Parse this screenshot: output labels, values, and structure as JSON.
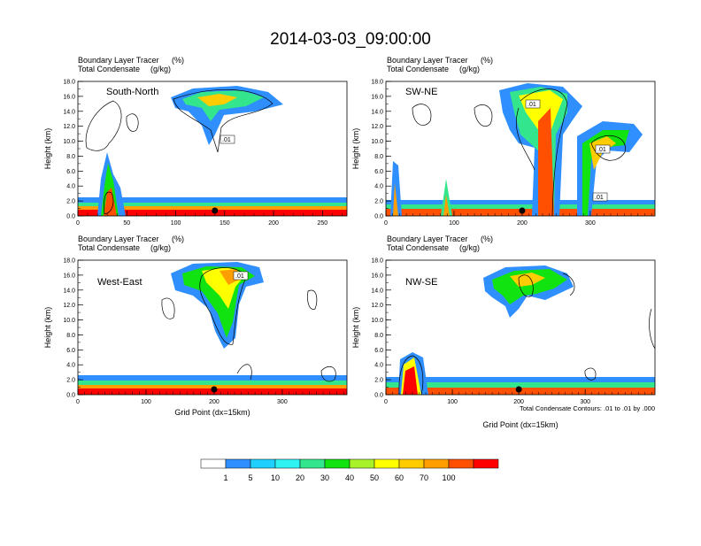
{
  "title": "2014-03-03_09:00:00",
  "colors": {
    "levels": [
      "#ffffff",
      "#2f8fff",
      "#1fd0ff",
      "#2ff2f2",
      "#33e58c",
      "#11e311",
      "#a8f22a",
      "#ffff00",
      "#ffcc00",
      "#ff9e00",
      "#ff4f00",
      "#ff0000"
    ],
    "contour": "#000000"
  },
  "chart_data": [
    {
      "type": "heatmap",
      "panel_label": "South-North",
      "left_title": "Boundary Layer Tracer",
      "left_units": "(%)",
      "left_title2": "Total Condensate",
      "left_units2": "(g/kg)",
      "ylabel": "Height (km)",
      "xlabel": "",
      "xlim": [
        0,
        275
      ],
      "ylim": [
        0,
        18
      ],
      "xticks": [
        0,
        50,
        100,
        150,
        200,
        250
      ],
      "yticks": [
        "0.0",
        "2.0",
        "4.0",
        "6.0",
        "8.0",
        "10.0",
        "12.0",
        "14.0",
        "16.0",
        "18.0"
      ],
      "marker_x": 140,
      "contour_labels": [
        ".01"
      ]
    },
    {
      "type": "heatmap",
      "panel_label": "SW-NE",
      "left_title": "Boundary Layer Tracer",
      "left_units": "(%)",
      "left_title2": "Total Condensate",
      "left_units2": "(g/kg)",
      "ylabel": "Height (km)",
      "xlabel": "",
      "xlim": [
        0,
        395
      ],
      "ylim": [
        0,
        18
      ],
      "xticks": [
        0,
        100,
        200,
        300
      ],
      "yticks": [
        "0.0",
        "2.0",
        "4.0",
        "6.0",
        "8.0",
        "10.0",
        "12.0",
        "14.0",
        "16.0",
        "18.0"
      ],
      "marker_x": 200,
      "contour_labels": [
        ".01",
        ".01",
        ".01"
      ]
    },
    {
      "type": "heatmap",
      "panel_label": "West-East",
      "left_title": "Boundary Layer Tracer",
      "left_units": "(%)",
      "left_title2": "Total Condensate",
      "left_units2": "(g/kg)",
      "ylabel": "Height (km)",
      "xlabel": "Grid Point (dx=15km)",
      "xlim": [
        0,
        395
      ],
      "ylim": [
        0,
        18
      ],
      "xticks": [
        0,
        100,
        200,
        300
      ],
      "yticks": [
        "0.0",
        "2.0",
        "4.0",
        "6.0",
        "8.0",
        "10.0",
        "12.0",
        "14.0",
        "16.0",
        "18.0"
      ],
      "marker_x": 200,
      "contour_labels": [
        ".01"
      ]
    },
    {
      "type": "heatmap",
      "panel_label": "NW-SE",
      "left_title": "Boundary Layer Tracer",
      "left_units": "(%)",
      "left_title2": "Total Condensate",
      "left_units2": "(g/kg)",
      "ylabel": "Height (km)",
      "xlabel": "Grid Point (dx=15km)",
      "xlim": [
        0,
        405
      ],
      "ylim": [
        0,
        18
      ],
      "xticks": [
        0,
        100,
        200,
        300
      ],
      "yticks": [
        "0.0",
        "2.0",
        "4.0",
        "6.0",
        "8.0",
        "10.0",
        "12.0",
        "14.0",
        "16.0",
        "18.0"
      ],
      "marker_x": 200,
      "contour_labels": [],
      "footnote": "Total Condensate Contours: .01 to .01 by .000"
    }
  ],
  "colorbar": {
    "labels": [
      "1",
      "5",
      "10",
      "20",
      "30",
      "40",
      "50",
      "60",
      "70",
      "100"
    ]
  }
}
